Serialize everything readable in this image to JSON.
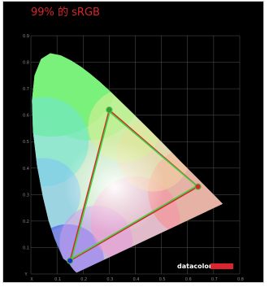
{
  "title": "99% 的 sRGB",
  "brand": {
    "name": "datacolor",
    "bar_color": "#d9252d"
  },
  "colors": {
    "title": "#d9252d",
    "background": "#000000",
    "grid": "#555555",
    "measured_triangle": "#d9252d",
    "reference_triangle": "#3fd13f"
  },
  "chart_data": {
    "type": "scatter",
    "title": "99% 的 sRGB",
    "xlim": [
      0,
      0.8
    ],
    "ylim": [
      0,
      0.9
    ],
    "grid": true,
    "x_tick_labels": [
      "X",
      "0.1",
      "0.2",
      "0.3",
      "0.4",
      "0.5",
      "0.6",
      "0.7",
      "0.8"
    ],
    "y_tick_labels": [
      "Y",
      "0.1",
      "0.2",
      "0.3",
      "0.4",
      "0.5",
      "0.6",
      "0.7",
      "0.8",
      "0.9"
    ],
    "x_ticks": [
      0,
      0.1,
      0.2,
      0.3,
      0.4,
      0.5,
      0.6,
      0.7,
      0.8
    ],
    "y_ticks": [
      0,
      0.1,
      0.2,
      0.3,
      0.4,
      0.5,
      0.6,
      0.7,
      0.8,
      0.9
    ],
    "locus": [
      [
        0.175,
        0.005
      ],
      [
        0.165,
        0.014
      ],
      [
        0.154,
        0.028
      ],
      [
        0.144,
        0.044
      ],
      [
        0.124,
        0.058
      ],
      [
        0.091,
        0.133
      ],
      [
        0.068,
        0.201
      ],
      [
        0.045,
        0.295
      ],
      [
        0.023,
        0.413
      ],
      [
        0.008,
        0.538
      ],
      [
        0.004,
        0.655
      ],
      [
        0.014,
        0.75
      ],
      [
        0.039,
        0.812
      ],
      [
        0.074,
        0.834
      ],
      [
        0.115,
        0.826
      ],
      [
        0.155,
        0.806
      ],
      [
        0.193,
        0.782
      ],
      [
        0.23,
        0.754
      ],
      [
        0.266,
        0.724
      ],
      [
        0.302,
        0.692
      ],
      [
        0.373,
        0.624
      ],
      [
        0.444,
        0.555
      ],
      [
        0.513,
        0.487
      ],
      [
        0.575,
        0.424
      ],
      [
        0.627,
        0.373
      ],
      [
        0.666,
        0.334
      ],
      [
        0.691,
        0.309
      ],
      [
        0.735,
        0.265
      ]
    ],
    "series": [
      {
        "name": "",
        "color": "#d9252d",
        "points": [
          [
            0.64,
            0.33
          ],
          [
            0.3,
            0.62
          ],
          [
            0.15,
            0.05
          ]
        ]
      },
      {
        "name": "",
        "color": "#3fd13f",
        "points": [
          [
            0.635,
            0.333
          ],
          [
            0.302,
            0.612
          ],
          [
            0.157,
            0.058
          ]
        ]
      }
    ]
  }
}
